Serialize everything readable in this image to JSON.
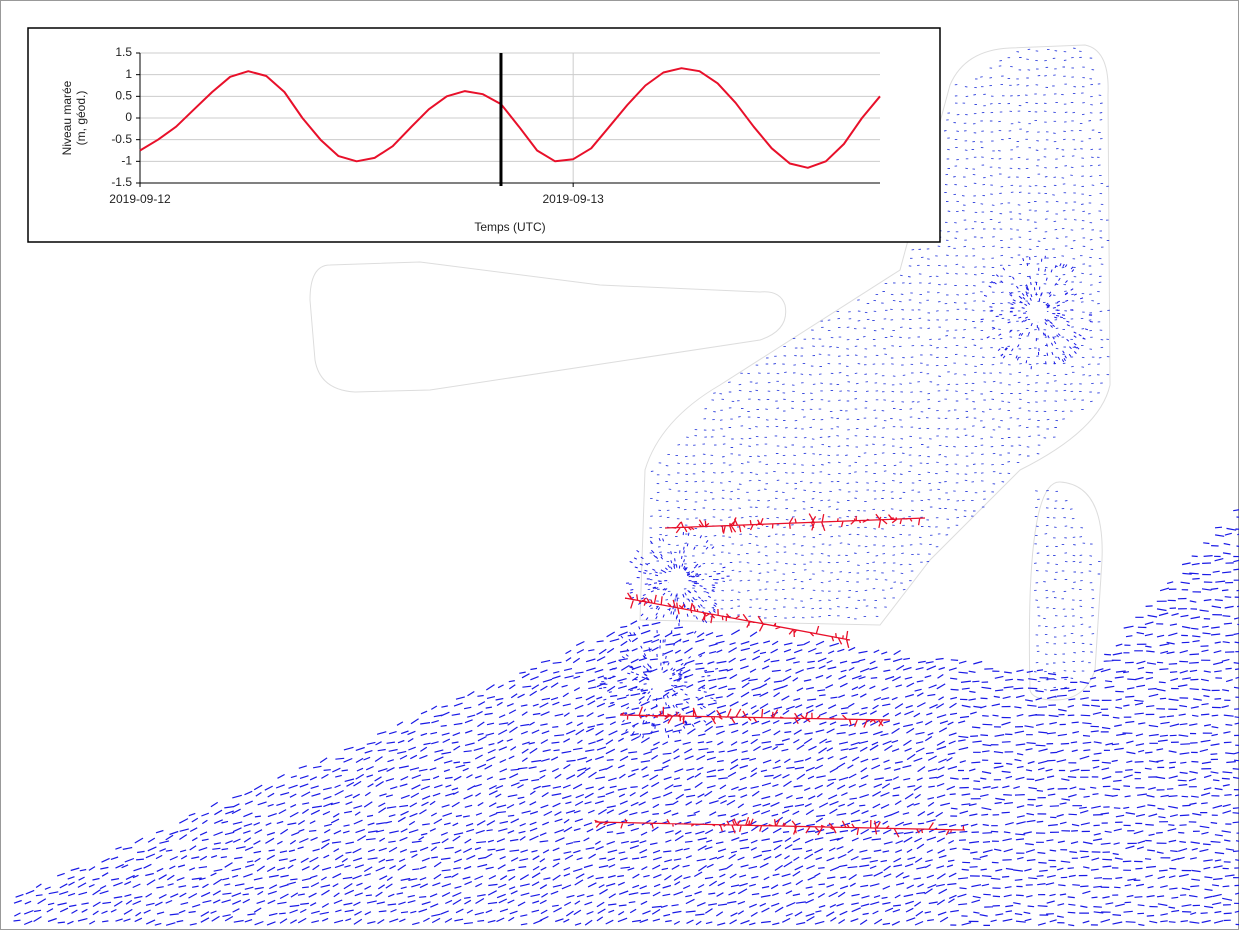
{
  "chart_data": {
    "type": "line",
    "ylabel": [
      "Niveau marée",
      "(m, géod.)"
    ],
    "xlabel": "Temps (UTC)",
    "x": [
      0,
      1,
      2,
      3,
      4,
      5,
      6,
      7,
      8,
      9,
      10,
      11,
      12,
      13,
      14,
      15,
      16,
      17,
      18,
      19,
      20,
      21,
      22,
      23,
      24,
      25,
      26,
      27,
      28,
      29,
      30,
      31,
      32,
      33,
      34,
      35,
      36,
      37,
      38,
      39,
      40,
      41
    ],
    "values": [
      -0.75,
      -0.5,
      -0.2,
      0.2,
      0.6,
      0.95,
      1.08,
      0.97,
      0.6,
      0.0,
      -0.5,
      -0.88,
      -1.0,
      -0.92,
      -0.65,
      -0.22,
      0.2,
      0.5,
      0.62,
      0.55,
      0.32,
      -0.2,
      -0.75,
      -1.0,
      -0.95,
      -0.7,
      -0.2,
      0.3,
      0.75,
      1.05,
      1.15,
      1.08,
      0.8,
      0.35,
      -0.2,
      -0.7,
      -1.05,
      -1.15,
      -1.0,
      -0.6,
      0.0,
      0.5
    ],
    "color": "#e8102a",
    "xlim": [
      0,
      41
    ],
    "xticks": [
      {
        "value": 0,
        "label": "2019-09-12"
      },
      {
        "value": 24,
        "label": "2019-09-13"
      }
    ],
    "ylim": [
      -1.5,
      1.5
    ],
    "yticks": [
      -1.5,
      -1,
      -0.5,
      0,
      0.5,
      1,
      1.5
    ],
    "grid": true,
    "marker_x": 20
  }
}
